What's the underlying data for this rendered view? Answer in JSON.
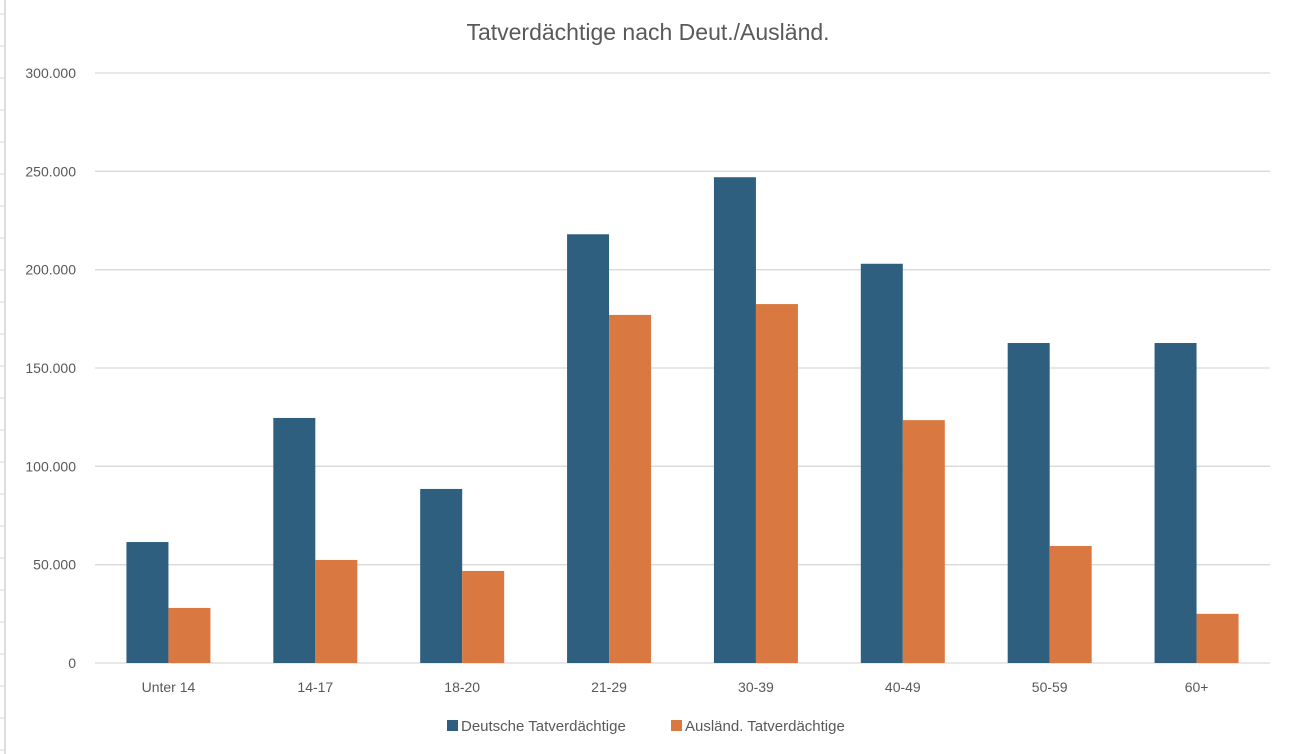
{
  "chart_data": {
    "type": "bar",
    "title": "Tatverdächtige nach Deut./Ausländ.",
    "xlabel": "",
    "ylabel": "",
    "categories": [
      "Unter 14",
      "14-17",
      "18-20",
      "21-29",
      "30-39",
      "40-49",
      "50-59",
      "60+"
    ],
    "series": [
      {
        "name": "Deutsche Tatverdächtige",
        "color": "#2e5f7f",
        "values": [
          61500,
          124600,
          88500,
          218000,
          247000,
          203000,
          162700,
          162700
        ]
      },
      {
        "name": "Ausländ. Tatverdächtige",
        "color": "#d97941",
        "values": [
          28000,
          52400,
          46800,
          177000,
          182500,
          123500,
          59500,
          25000
        ]
      }
    ],
    "ylim": [
      0,
      300000
    ],
    "yticks": [
      0,
      50000,
      100000,
      150000,
      200000,
      250000,
      300000
    ],
    "ytick_labels": [
      "0",
      "50.000",
      "100.000",
      "150.000",
      "200.000",
      "250.000",
      "300.000"
    ],
    "grid": true,
    "legend_position": "bottom"
  }
}
